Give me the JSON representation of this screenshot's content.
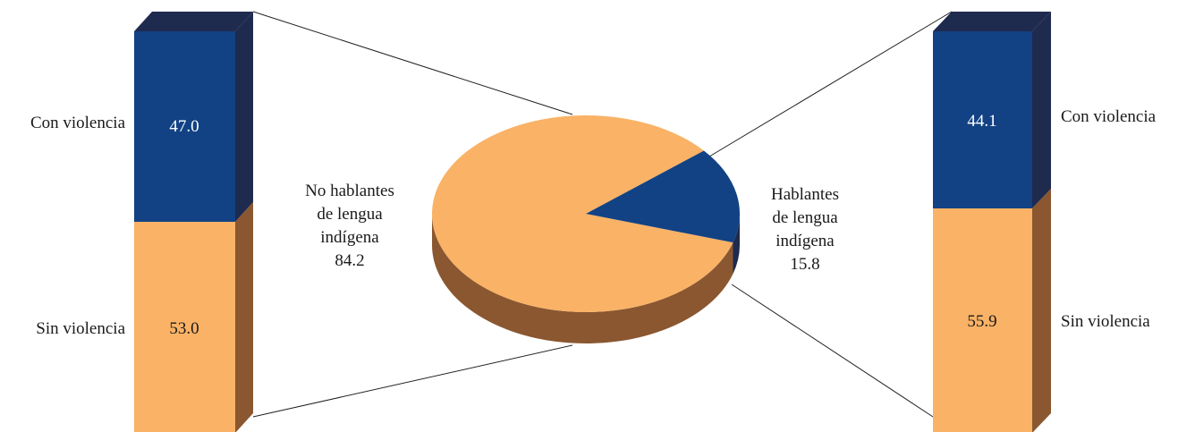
{
  "chart_data": {
    "type": "pie",
    "pie": {
      "slices": [
        {
          "label_lines": [
            "No hablantes",
            "de lengua",
            "indígena"
          ],
          "value": 84.2,
          "display": "84.2",
          "color": "#F9B266"
        },
        {
          "label_lines": [
            "Hablantes",
            "de lengua",
            "indígena"
          ],
          "value": 15.8,
          "display": "15.8",
          "color": "#124284"
        }
      ]
    },
    "stacked_bars": [
      {
        "of_slice": "No hablantes de lengua indígena",
        "segments": [
          {
            "label": "Con violencia",
            "value": 47.0,
            "display": "47.0",
            "color": "#124284"
          },
          {
            "label": "Sin violencia",
            "value": 53.0,
            "display": "53.0",
            "color": "#F9B266"
          }
        ]
      },
      {
        "of_slice": "Hablantes de lengua indígena",
        "segments": [
          {
            "label": "Con violencia",
            "value": 44.1,
            "display": "44.1",
            "color": "#124284"
          },
          {
            "label": "Sin violencia",
            "value": 55.9,
            "display": "55.9",
            "color": "#F9B266"
          }
        ]
      }
    ]
  },
  "colors": {
    "blue": "#124284",
    "blue_side": "#1F2A4F",
    "orange": "#F9B266",
    "orange_side": "#8A5730",
    "connector": "#222222"
  }
}
